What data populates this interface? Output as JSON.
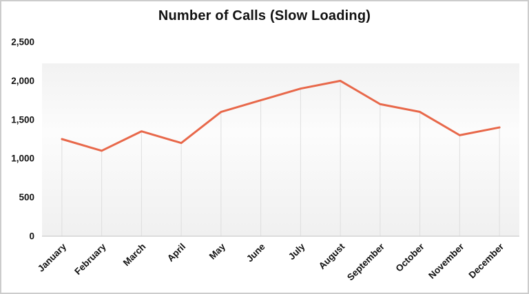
{
  "chart": {
    "title": "Number of Calls (Slow Loading)"
  },
  "chart_data": {
    "type": "line",
    "title": "Number of Calls (Slow Loading)",
    "categories": [
      "January",
      "February",
      "March",
      "April",
      "May",
      "June",
      "July",
      "August",
      "September",
      "October",
      "November",
      "December"
    ],
    "values": [
      1250,
      1100,
      1350,
      1200,
      1600,
      1750,
      1900,
      2000,
      1700,
      1600,
      1300,
      1400
    ],
    "xlabel": "",
    "ylabel": "",
    "ylim": [
      0,
      2500
    ],
    "y_ticks": [
      0,
      500,
      1000,
      1500,
      2000,
      2500
    ],
    "y_tick_labels": [
      "0",
      "500",
      "1,000",
      "1,500",
      "2,000",
      "2,500"
    ],
    "x_tick_rotation_deg": -45,
    "legend": "none",
    "grid": "vertical-drop-lines-under-points",
    "line_color": "#e8684a",
    "axis_line_color": "#d2d2d2",
    "drop_line_color": "#dedede",
    "plot_bg_top": "#f2f2f2",
    "plot_bg_mid": "#fcfcfc",
    "plot_bg_bottom": "#f0f0f0",
    "label_color": "#111111",
    "title_color": "#111111"
  }
}
